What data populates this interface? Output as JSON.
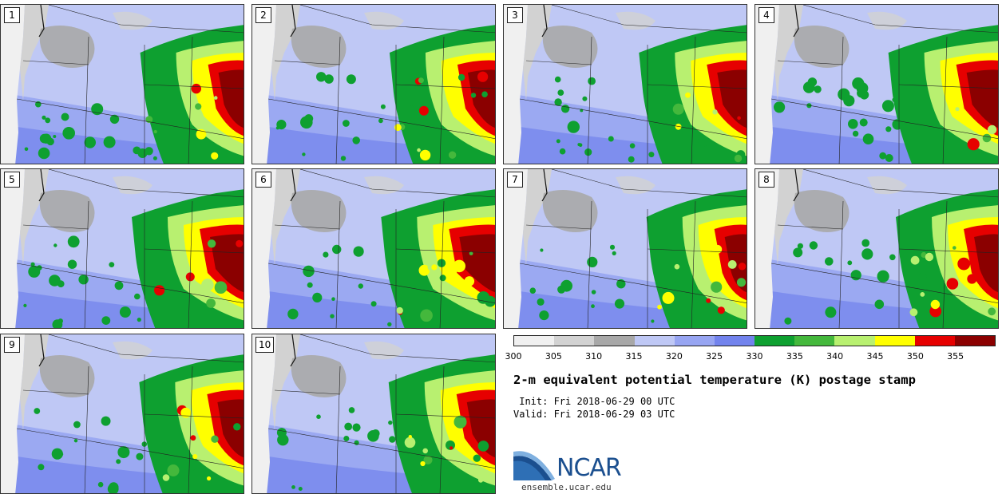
{
  "panels": [
    {
      "label": "1"
    },
    {
      "label": "2"
    },
    {
      "label": "3"
    },
    {
      "label": "4"
    },
    {
      "label": "5"
    },
    {
      "label": "6"
    },
    {
      "label": "7"
    },
    {
      "label": "8"
    },
    {
      "label": "9"
    },
    {
      "label": "10"
    }
  ],
  "colorbar": {
    "colors": [
      "#f0f0f0",
      "#d2d2d2",
      "#a8a8a8",
      "#bfc8f5",
      "#97a5f2",
      "#7283ed",
      "#0ea030",
      "#44b83c",
      "#b8f070",
      "#ffff00",
      "#e60000",
      "#8b0000"
    ],
    "ticks": [
      "300",
      "305",
      "310",
      "315",
      "320",
      "325",
      "330",
      "335",
      "340",
      "345",
      "350",
      "355"
    ]
  },
  "title": "2-m equivalent potential temperature (K) postage stamp",
  "init": " Init: Fri 2018-06-29 00 UTC",
  "valid": "Valid: Fri 2018-06-29 03 UTC",
  "logo": {
    "name": "NCAR",
    "url": "ensemble.ucar.edu"
  }
}
